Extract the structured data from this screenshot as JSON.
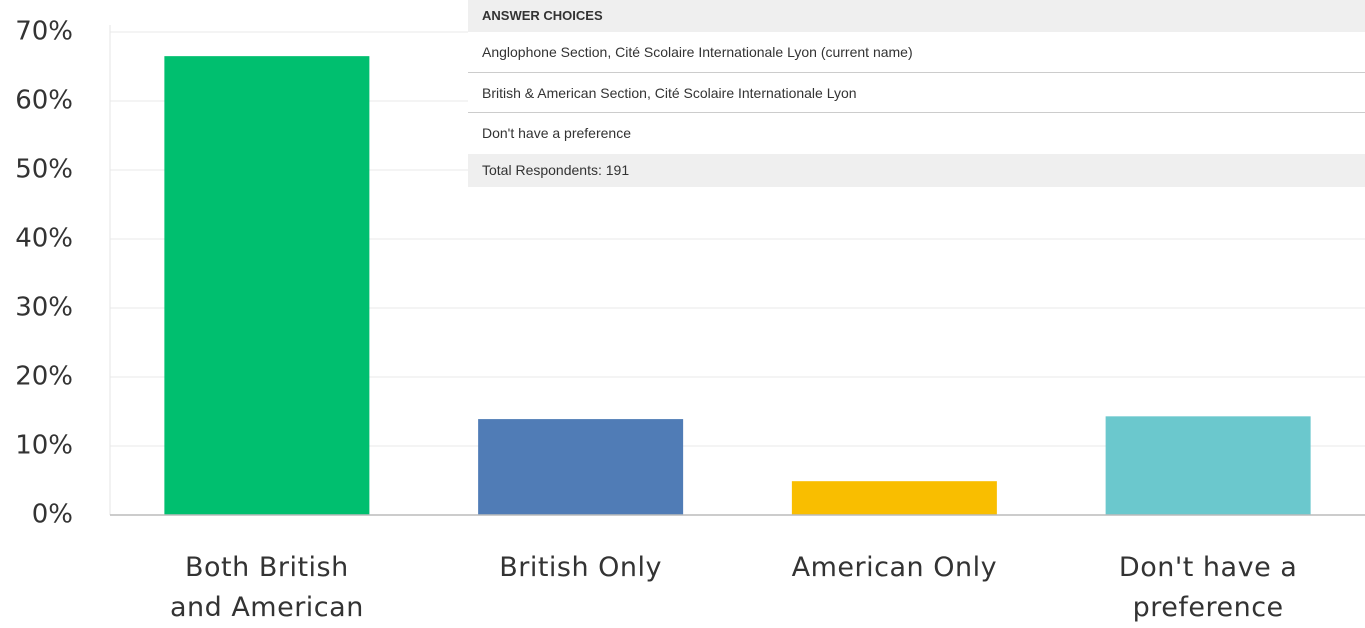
{
  "chart_data": {
    "type": "bar",
    "categories": [
      "Both British and American",
      "British Only",
      "American Only",
      "Don't have a preference"
    ],
    "values": [
      66.5,
      13.9,
      4.9,
      14.3
    ],
    "colors": [
      "#00bf6f",
      "#507cb6",
      "#f9be00",
      "#6bc8cd"
    ],
    "ylim": [
      0,
      70
    ],
    "yticks": [
      {
        "value": 0,
        "label": "0%"
      },
      {
        "value": 10,
        "label": "10%"
      },
      {
        "value": 20,
        "label": "20%"
      },
      {
        "value": 30,
        "label": "30%"
      },
      {
        "value": 40,
        "label": "40%"
      },
      {
        "value": 50,
        "label": "50%"
      },
      {
        "value": 60,
        "label": "60%"
      },
      {
        "value": 70,
        "label": "70%"
      }
    ],
    "grid": true
  },
  "table": {
    "header": "ANSWER CHOICES",
    "rows": [
      "Anglophone Section, Cité Scolaire Internationale Lyon (current name)",
      "British & American Section, Cité Scolaire Internationale Lyon",
      "Don't have a preference"
    ],
    "footer": "Total Respondents: 191"
  }
}
